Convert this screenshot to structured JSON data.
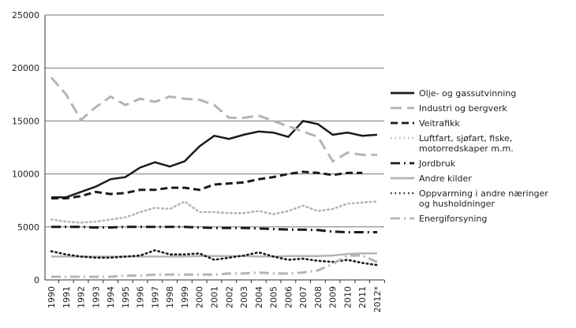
{
  "chart_data": {
    "type": "line",
    "x": [
      "1990",
      "1991",
      "1992",
      "1993",
      "1994",
      "1995",
      "1996",
      "1997",
      "1998",
      "1999",
      "2000",
      "2001",
      "2002",
      "2003",
      "2004",
      "2005",
      "2006",
      "2007",
      "2008",
      "2009",
      "2010",
      "2011",
      "2012*"
    ],
    "ylim": [
      0,
      25000
    ],
    "yticks": [
      "0",
      "5000",
      "10000",
      "15000",
      "20000",
      "25000"
    ],
    "grid": true,
    "legend": "right",
    "series": [
      {
        "name": "Olje- og gassutvinning",
        "color": "#1a1a1a",
        "style": "solid",
        "values": [
          7800,
          7800,
          8300,
          8800,
          9500,
          9700,
          10600,
          11100,
          10700,
          11200,
          12600,
          13600,
          13300,
          13700,
          14000,
          13900,
          13500,
          15000,
          14700,
          13700,
          13900,
          13600,
          13700
        ]
      },
      {
        "name": "Industri og bergverk",
        "color": "#b4b4b4",
        "style": "longdash",
        "values": [
          19100,
          17500,
          15100,
          16300,
          17300,
          16500,
          17100,
          16800,
          17300,
          17100,
          17000,
          16500,
          15300,
          15300,
          15500,
          15000,
          14500,
          14000,
          13500,
          11200,
          12000,
          11800,
          11800
        ]
      },
      {
        "name": "Veitrafikk",
        "color": "#1a1a1a",
        "style": "dash",
        "values": [
          7700,
          7700,
          7900,
          8300,
          8100,
          8200,
          8500,
          8500,
          8700,
          8700,
          8500,
          9000,
          9100,
          9200,
          9500,
          9700,
          10000,
          10200,
          10100,
          9900,
          10100,
          10100,
          null
        ]
      },
      {
        "name": "Luftfart, sjøfart, fiske, motorredskaper m.m.",
        "color": "#b4b4b4",
        "style": "dot",
        "values": [
          5700,
          5500,
          5400,
          5500,
          5700,
          5900,
          6400,
          6800,
          6700,
          7400,
          6400,
          6400,
          6300,
          6300,
          6500,
          6200,
          6500,
          7000,
          6500,
          6700,
          7200,
          7300,
          7400
        ]
      },
      {
        "name": "Jordbruk",
        "color": "#1a1a1a",
        "style": "dashdot",
        "values": [
          5000,
          5000,
          5000,
          4950,
          4950,
          5000,
          5000,
          5000,
          5000,
          5000,
          4950,
          4900,
          4900,
          4900,
          4850,
          4800,
          4750,
          4750,
          4700,
          4550,
          4500,
          4500,
          4500
        ]
      },
      {
        "name": "Andre kilder",
        "color": "#b4b4b4",
        "style": "solid",
        "values": [
          2200,
          2200,
          2200,
          2200,
          2200,
          2200,
          2200,
          2200,
          2200,
          2200,
          2250,
          2250,
          2250,
          2250,
          2200,
          2200,
          2250,
          2250,
          2250,
          2300,
          2450,
          2500,
          2500
        ]
      },
      {
        "name": "Oppvarming i andre næringer og husholdninger",
        "color": "#1a1a1a",
        "style": "dot",
        "values": [
          2700,
          2400,
          2200,
          2100,
          2100,
          2200,
          2300,
          2800,
          2400,
          2400,
          2500,
          1900,
          2100,
          2300,
          2600,
          2200,
          1900,
          2000,
          1800,
          1700,
          1900,
          1600,
          1400
        ]
      },
      {
        "name": "Energiforsyning",
        "color": "#b4b4b4",
        "style": "dashdot",
        "values": [
          300,
          300,
          300,
          300,
          300,
          400,
          400,
          500,
          500,
          500,
          500,
          500,
          600,
          600,
          700,
          600,
          600,
          700,
          900,
          1500,
          2300,
          2300,
          1700
        ]
      }
    ]
  }
}
